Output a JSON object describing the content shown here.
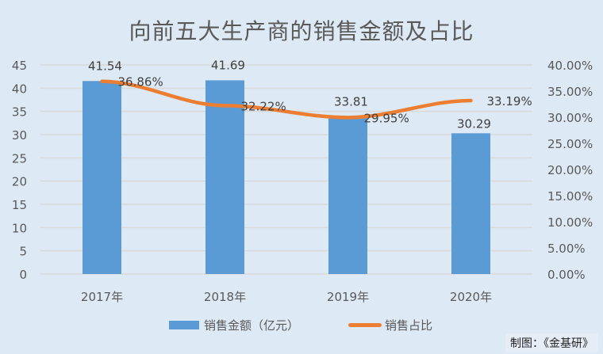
{
  "chart_data": {
    "type": "bar+line",
    "title": "向前五大生产商的销售金额及占比",
    "categories": [
      "2017年",
      "2018年",
      "2019年",
      "2020年"
    ],
    "series": [
      {
        "name": "销售金额（亿元）",
        "type": "bar",
        "axis": "left",
        "color": "#5b9bd5",
        "values": [
          41.54,
          41.69,
          33.81,
          30.29
        ],
        "labels": [
          "41.54",
          "41.69",
          "33.81",
          "30.29"
        ]
      },
      {
        "name": "销售占比",
        "type": "line",
        "axis": "right",
        "color": "#ed7d31",
        "values": [
          36.86,
          32.22,
          29.95,
          33.19
        ],
        "labels": [
          "36.86%",
          "32.22%",
          "29.95%",
          "33.19%"
        ]
      }
    ],
    "left_axis": {
      "range": [
        0,
        45
      ],
      "ticks": [
        "0",
        "5",
        "10",
        "15",
        "20",
        "25",
        "30",
        "35",
        "40",
        "45"
      ]
    },
    "right_axis": {
      "range": [
        0,
        40
      ],
      "ticks": [
        "0.00%",
        "5.00%",
        "10.00%",
        "15.00%",
        "20.00%",
        "25.00%",
        "30.00%",
        "35.00%",
        "40.00%"
      ]
    },
    "grid": true,
    "legend": "bottom"
  },
  "source": "制图：《金基研》"
}
